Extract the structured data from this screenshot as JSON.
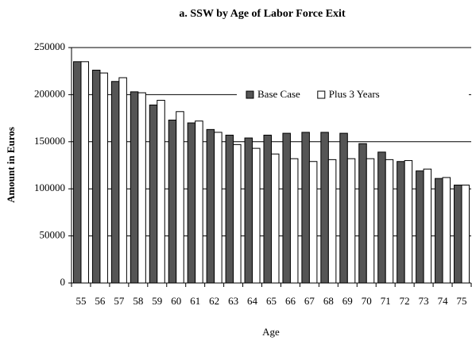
{
  "chart_data": {
    "type": "bar",
    "title": "a. SSW by Age of Labor Force Exit",
    "x_label": "Age",
    "y_label": "Amount in Euros",
    "categories": [
      "55",
      "56",
      "57",
      "58",
      "59",
      "60",
      "61",
      "62",
      "63",
      "64",
      "65",
      "66",
      "67",
      "68",
      "69",
      "70",
      "71",
      "72",
      "73",
      "74",
      "75"
    ],
    "series": [
      {
        "name": "Base Case",
        "color": "#555555",
        "values": [
          235000,
          226000,
          214000,
          203000,
          189000,
          173000,
          170000,
          163000,
          157000,
          154000,
          157000,
          159000,
          160000,
          160000,
          159000,
          148000,
          139000,
          129000,
          119000,
          111000,
          104000
        ]
      },
      {
        "name": "Plus 3 Years",
        "color": "#ffffff",
        "values": [
          235000,
          223000,
          218000,
          202000,
          194000,
          182000,
          172000,
          160000,
          147000,
          143000,
          137000,
          132000,
          129000,
          131000,
          132000,
          132000,
          131000,
          130000,
          121000,
          112000,
          104000
        ]
      }
    ],
    "ylim": [
      0,
      250000
    ],
    "yticks": [
      0,
      50000,
      100000,
      150000,
      200000,
      250000
    ],
    "grid": true,
    "legend": "upper right"
  }
}
